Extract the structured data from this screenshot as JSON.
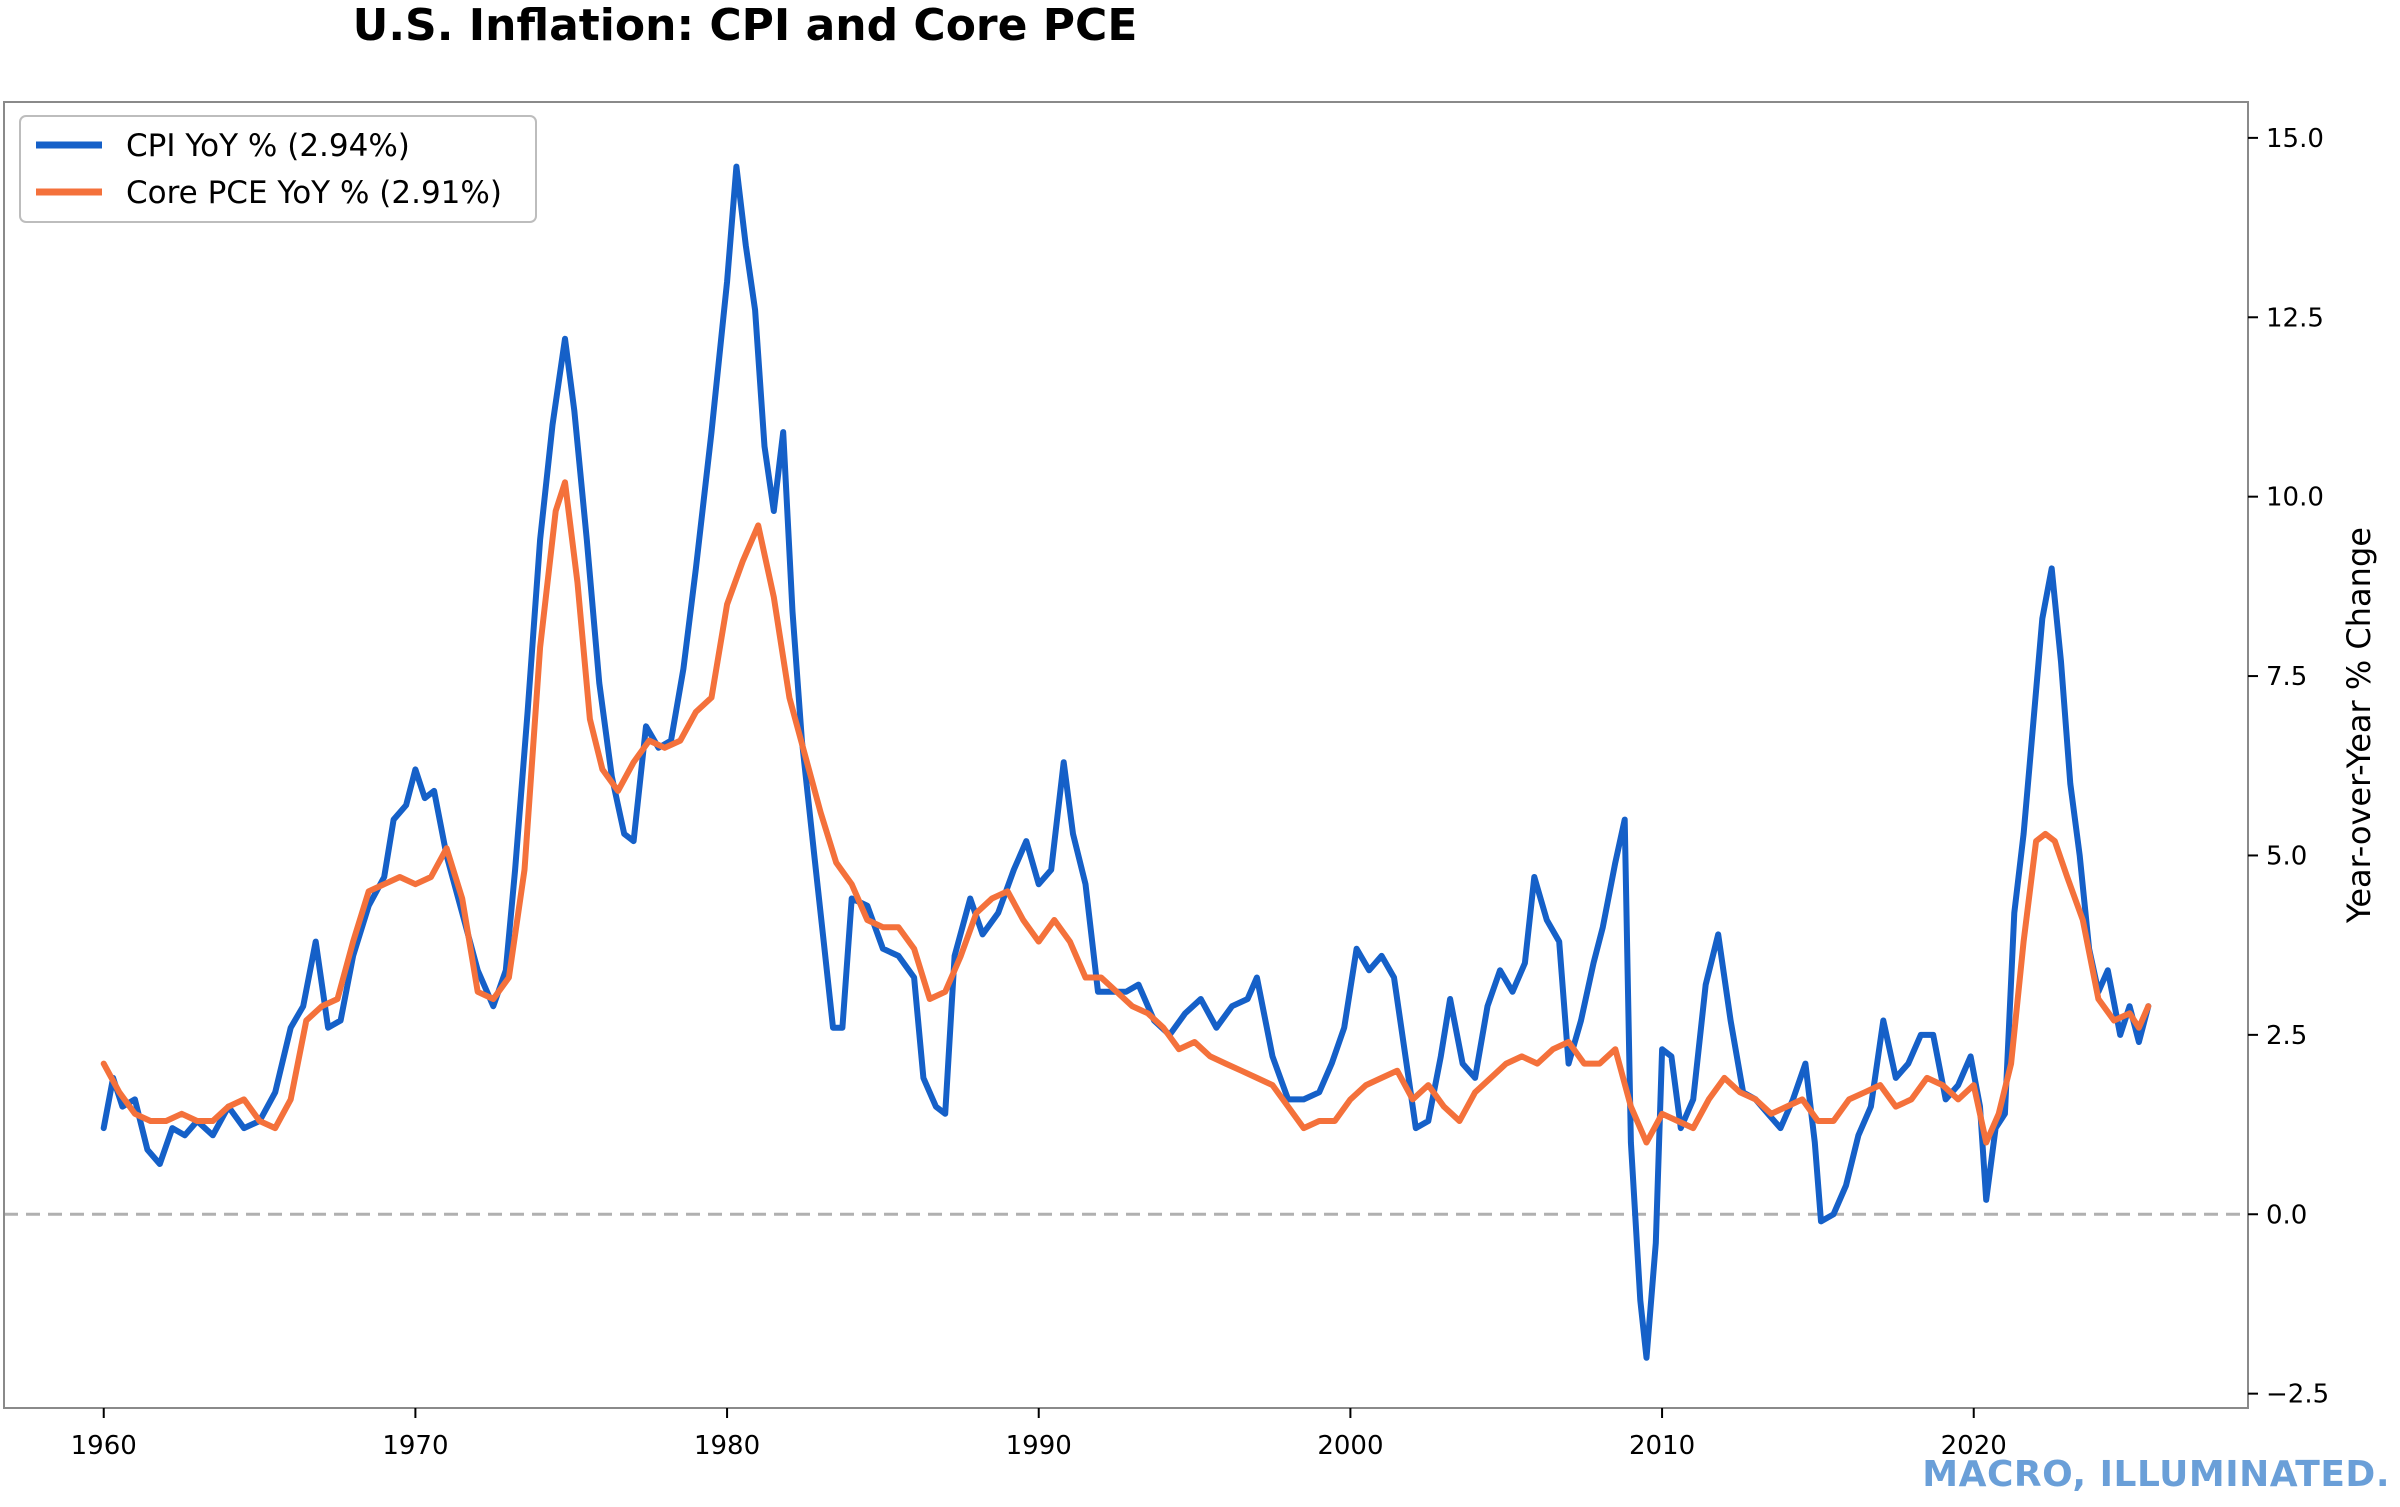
{
  "chart_data": {
    "type": "line",
    "title": "U.S. Inflation: CPI and Core PCE",
    "xlabel": "",
    "ylabel": "Year-over-Year % Change",
    "xlim": [
      1956.8,
      2028.8
    ],
    "ylim": [
      -2.7,
      15.5
    ],
    "x_ticks": [
      1960,
      1970,
      1980,
      1990,
      2000,
      2010,
      2020
    ],
    "y_ticks": [
      -2.5,
      0.0,
      2.5,
      5.0,
      7.5,
      10.0,
      12.5,
      15.0
    ],
    "y_tick_labels": [
      "−2.5",
      "0.0",
      "2.5",
      "5.0",
      "7.5",
      "10.0",
      "12.5",
      "15.0"
    ],
    "reference_line": {
      "y": 0,
      "style": "dashed",
      "color": "#b0b0b0"
    },
    "legend_position": "top-left",
    "series": [
      {
        "name": "CPI YoY % (2.94%)",
        "color": "#1560c8",
        "points": [
          [
            1960.0,
            1.2
          ],
          [
            1960.3,
            1.9
          ],
          [
            1960.6,
            1.5
          ],
          [
            1961.0,
            1.6
          ],
          [
            1961.4,
            0.9
          ],
          [
            1961.8,
            0.7
          ],
          [
            1962.2,
            1.2
          ],
          [
            1962.6,
            1.1
          ],
          [
            1963.0,
            1.3
          ],
          [
            1963.5,
            1.1
          ],
          [
            1964.0,
            1.5
          ],
          [
            1964.5,
            1.2
          ],
          [
            1965.0,
            1.3
          ],
          [
            1965.5,
            1.7
          ],
          [
            1966.0,
            2.6
          ],
          [
            1966.4,
            2.9
          ],
          [
            1966.8,
            3.8
          ],
          [
            1967.2,
            2.6
          ],
          [
            1967.6,
            2.7
          ],
          [
            1968.0,
            3.6
          ],
          [
            1968.5,
            4.3
          ],
          [
            1969.0,
            4.7
          ],
          [
            1969.3,
            5.5
          ],
          [
            1969.7,
            5.7
          ],
          [
            1970.0,
            6.2
          ],
          [
            1970.3,
            5.8
          ],
          [
            1970.6,
            5.9
          ],
          [
            1971.0,
            5.0
          ],
          [
            1971.5,
            4.2
          ],
          [
            1972.0,
            3.4
          ],
          [
            1972.5,
            2.9
          ],
          [
            1972.9,
            3.4
          ],
          [
            1973.2,
            4.8
          ],
          [
            1973.6,
            7.0
          ],
          [
            1974.0,
            9.4
          ],
          [
            1974.4,
            11.0
          ],
          [
            1974.8,
            12.2
          ],
          [
            1975.1,
            11.2
          ],
          [
            1975.5,
            9.4
          ],
          [
            1975.9,
            7.4
          ],
          [
            1976.3,
            6.1
          ],
          [
            1976.7,
            5.3
          ],
          [
            1977.0,
            5.2
          ],
          [
            1977.4,
            6.8
          ],
          [
            1977.8,
            6.5
          ],
          [
            1978.2,
            6.6
          ],
          [
            1978.6,
            7.6
          ],
          [
            1979.0,
            9.0
          ],
          [
            1979.5,
            10.9
          ],
          [
            1980.0,
            13.0
          ],
          [
            1980.3,
            14.6
          ],
          [
            1980.6,
            13.5
          ],
          [
            1980.9,
            12.6
          ],
          [
            1981.2,
            10.7
          ],
          [
            1981.5,
            9.8
          ],
          [
            1981.8,
            10.9
          ],
          [
            1982.1,
            8.4
          ],
          [
            1982.4,
            6.6
          ],
          [
            1982.8,
            5.0
          ],
          [
            1983.1,
            3.8
          ],
          [
            1983.4,
            2.6
          ],
          [
            1983.7,
            2.6
          ],
          [
            1984.0,
            4.4
          ],
          [
            1984.5,
            4.3
          ],
          [
            1985.0,
            3.7
          ],
          [
            1985.5,
            3.6
          ],
          [
            1986.0,
            3.3
          ],
          [
            1986.3,
            1.9
          ],
          [
            1986.7,
            1.5
          ],
          [
            1987.0,
            1.4
          ],
          [
            1987.3,
            3.6
          ],
          [
            1987.8,
            4.4
          ],
          [
            1988.2,
            3.9
          ],
          [
            1988.7,
            4.2
          ],
          [
            1989.2,
            4.8
          ],
          [
            1989.6,
            5.2
          ],
          [
            1990.0,
            4.6
          ],
          [
            1990.4,
            4.8
          ],
          [
            1990.8,
            6.3
          ],
          [
            1991.1,
            5.3
          ],
          [
            1991.5,
            4.6
          ],
          [
            1991.9,
            3.1
          ],
          [
            1992.3,
            3.1
          ],
          [
            1992.8,
            3.1
          ],
          [
            1993.2,
            3.2
          ],
          [
            1993.7,
            2.7
          ],
          [
            1994.2,
            2.5
          ],
          [
            1994.7,
            2.8
          ],
          [
            1995.2,
            3.0
          ],
          [
            1995.7,
            2.6
          ],
          [
            1996.2,
            2.9
          ],
          [
            1996.7,
            3.0
          ],
          [
            1997.0,
            3.3
          ],
          [
            1997.5,
            2.2
          ],
          [
            1998.0,
            1.6
          ],
          [
            1998.5,
            1.6
          ],
          [
            1999.0,
            1.7
          ],
          [
            1999.4,
            2.1
          ],
          [
            1999.8,
            2.6
          ],
          [
            2000.2,
            3.7
          ],
          [
            2000.6,
            3.4
          ],
          [
            2001.0,
            3.6
          ],
          [
            2001.4,
            3.3
          ],
          [
            2001.8,
            2.1
          ],
          [
            2002.1,
            1.2
          ],
          [
            2002.5,
            1.3
          ],
          [
            2002.9,
            2.2
          ],
          [
            2003.2,
            3.0
          ],
          [
            2003.6,
            2.1
          ],
          [
            2004.0,
            1.9
          ],
          [
            2004.4,
            2.9
          ],
          [
            2004.8,
            3.4
          ],
          [
            2005.2,
            3.1
          ],
          [
            2005.6,
            3.5
          ],
          [
            2005.9,
            4.7
          ],
          [
            2006.3,
            4.1
          ],
          [
            2006.7,
            3.8
          ],
          [
            2007.0,
            2.1
          ],
          [
            2007.4,
            2.7
          ],
          [
            2007.8,
            3.5
          ],
          [
            2008.1,
            4.0
          ],
          [
            2008.5,
            4.9
          ],
          [
            2008.8,
            5.5
          ],
          [
            2009.0,
            1.0
          ],
          [
            2009.3,
            -1.2
          ],
          [
            2009.5,
            -2.0
          ],
          [
            2009.8,
            -0.4
          ],
          [
            2010.0,
            2.3
          ],
          [
            2010.3,
            2.2
          ],
          [
            2010.6,
            1.2
          ],
          [
            2011.0,
            1.6
          ],
          [
            2011.4,
            3.2
          ],
          [
            2011.8,
            3.9
          ],
          [
            2012.2,
            2.7
          ],
          [
            2012.6,
            1.7
          ],
          [
            2013.0,
            1.6
          ],
          [
            2013.4,
            1.4
          ],
          [
            2013.8,
            1.2
          ],
          [
            2014.2,
            1.6
          ],
          [
            2014.6,
            2.1
          ],
          [
            2014.9,
            1.0
          ],
          [
            2015.1,
            -0.1
          ],
          [
            2015.5,
            0.0
          ],
          [
            2015.9,
            0.4
          ],
          [
            2016.3,
            1.1
          ],
          [
            2016.7,
            1.5
          ],
          [
            2017.1,
            2.7
          ],
          [
            2017.5,
            1.9
          ],
          [
            2017.9,
            2.1
          ],
          [
            2018.3,
            2.5
          ],
          [
            2018.7,
            2.5
          ],
          [
            2019.1,
            1.6
          ],
          [
            2019.5,
            1.8
          ],
          [
            2019.9,
            2.2
          ],
          [
            2020.2,
            1.5
          ],
          [
            2020.4,
            0.2
          ],
          [
            2020.7,
            1.2
          ],
          [
            2021.0,
            1.4
          ],
          [
            2021.3,
            4.2
          ],
          [
            2021.6,
            5.3
          ],
          [
            2021.9,
            6.8
          ],
          [
            2022.2,
            8.3
          ],
          [
            2022.5,
            9.0
          ],
          [
            2022.8,
            7.7
          ],
          [
            2023.1,
            6.0
          ],
          [
            2023.4,
            5.0
          ],
          [
            2023.7,
            3.7
          ],
          [
            2024.0,
            3.1
          ],
          [
            2024.3,
            3.4
          ],
          [
            2024.7,
            2.5
          ],
          [
            2025.0,
            2.9
          ],
          [
            2025.3,
            2.4
          ],
          [
            2025.6,
            2.9
          ]
        ]
      },
      {
        "name": "Core PCE YoY % (2.91%)",
        "color": "#f4713b",
        "points": [
          [
            1960.0,
            2.1
          ],
          [
            1960.5,
            1.7
          ],
          [
            1961.0,
            1.4
          ],
          [
            1961.5,
            1.3
          ],
          [
            1962.0,
            1.3
          ],
          [
            1962.5,
            1.4
          ],
          [
            1963.0,
            1.3
          ],
          [
            1963.5,
            1.3
          ],
          [
            1964.0,
            1.5
          ],
          [
            1964.5,
            1.6
          ],
          [
            1965.0,
            1.3
          ],
          [
            1965.5,
            1.2
          ],
          [
            1966.0,
            1.6
          ],
          [
            1966.5,
            2.7
          ],
          [
            1967.0,
            2.9
          ],
          [
            1967.5,
            3.0
          ],
          [
            1968.0,
            3.8
          ],
          [
            1968.5,
            4.5
          ],
          [
            1969.0,
            4.6
          ],
          [
            1969.5,
            4.7
          ],
          [
            1970.0,
            4.6
          ],
          [
            1970.5,
            4.7
          ],
          [
            1971.0,
            5.1
          ],
          [
            1971.5,
            4.4
          ],
          [
            1972.0,
            3.1
          ],
          [
            1972.5,
            3.0
          ],
          [
            1973.0,
            3.3
          ],
          [
            1973.5,
            4.8
          ],
          [
            1974.0,
            7.9
          ],
          [
            1974.5,
            9.8
          ],
          [
            1974.8,
            10.2
          ],
          [
            1975.2,
            8.8
          ],
          [
            1975.6,
            6.9
          ],
          [
            1976.0,
            6.2
          ],
          [
            1976.5,
            5.9
          ],
          [
            1977.0,
            6.3
          ],
          [
            1977.5,
            6.6
          ],
          [
            1978.0,
            6.5
          ],
          [
            1978.5,
            6.6
          ],
          [
            1979.0,
            7.0
          ],
          [
            1979.5,
            7.2
          ],
          [
            1980.0,
            8.5
          ],
          [
            1980.5,
            9.1
          ],
          [
            1981.0,
            9.6
          ],
          [
            1981.5,
            8.6
          ],
          [
            1982.0,
            7.2
          ],
          [
            1982.5,
            6.4
          ],
          [
            1983.0,
            5.6
          ],
          [
            1983.5,
            4.9
          ],
          [
            1984.0,
            4.6
          ],
          [
            1984.5,
            4.1
          ],
          [
            1985.0,
            4.0
          ],
          [
            1985.5,
            4.0
          ],
          [
            1986.0,
            3.7
          ],
          [
            1986.5,
            3.0
          ],
          [
            1987.0,
            3.1
          ],
          [
            1987.5,
            3.6
          ],
          [
            1988.0,
            4.2
          ],
          [
            1988.5,
            4.4
          ],
          [
            1989.0,
            4.5
          ],
          [
            1989.5,
            4.1
          ],
          [
            1990.0,
            3.8
          ],
          [
            1990.5,
            4.1
          ],
          [
            1991.0,
            3.8
          ],
          [
            1991.5,
            3.3
          ],
          [
            1992.0,
            3.3
          ],
          [
            1992.5,
            3.1
          ],
          [
            1993.0,
            2.9
          ],
          [
            1993.5,
            2.8
          ],
          [
            1994.0,
            2.6
          ],
          [
            1994.5,
            2.3
          ],
          [
            1995.0,
            2.4
          ],
          [
            1995.5,
            2.2
          ],
          [
            1996.0,
            2.1
          ],
          [
            1996.5,
            2.0
          ],
          [
            1997.0,
            1.9
          ],
          [
            1997.5,
            1.8
          ],
          [
            1998.0,
            1.5
          ],
          [
            1998.5,
            1.2
          ],
          [
            1999.0,
            1.3
          ],
          [
            1999.5,
            1.3
          ],
          [
            2000.0,
            1.6
          ],
          [
            2000.5,
            1.8
          ],
          [
            2001.0,
            1.9
          ],
          [
            2001.5,
            2.0
          ],
          [
            2002.0,
            1.6
          ],
          [
            2002.5,
            1.8
          ],
          [
            2003.0,
            1.5
          ],
          [
            2003.5,
            1.3
          ],
          [
            2004.0,
            1.7
          ],
          [
            2004.5,
            1.9
          ],
          [
            2005.0,
            2.1
          ],
          [
            2005.5,
            2.2
          ],
          [
            2006.0,
            2.1
          ],
          [
            2006.5,
            2.3
          ],
          [
            2007.0,
            2.4
          ],
          [
            2007.5,
            2.1
          ],
          [
            2008.0,
            2.1
          ],
          [
            2008.5,
            2.3
          ],
          [
            2009.0,
            1.5
          ],
          [
            2009.5,
            1.0
          ],
          [
            2010.0,
            1.4
          ],
          [
            2010.5,
            1.3
          ],
          [
            2011.0,
            1.2
          ],
          [
            2011.5,
            1.6
          ],
          [
            2012.0,
            1.9
          ],
          [
            2012.5,
            1.7
          ],
          [
            2013.0,
            1.6
          ],
          [
            2013.5,
            1.4
          ],
          [
            2014.0,
            1.5
          ],
          [
            2014.5,
            1.6
          ],
          [
            2015.0,
            1.3
          ],
          [
            2015.5,
            1.3
          ],
          [
            2016.0,
            1.6
          ],
          [
            2016.5,
            1.7
          ],
          [
            2017.0,
            1.8
          ],
          [
            2017.5,
            1.5
          ],
          [
            2018.0,
            1.6
          ],
          [
            2018.5,
            1.9
          ],
          [
            2019.0,
            1.8
          ],
          [
            2019.5,
            1.6
          ],
          [
            2020.0,
            1.8
          ],
          [
            2020.4,
            1.0
          ],
          [
            2020.8,
            1.4
          ],
          [
            2021.2,
            2.1
          ],
          [
            2021.6,
            3.8
          ],
          [
            2022.0,
            5.2
          ],
          [
            2022.3,
            5.3
          ],
          [
            2022.6,
            5.2
          ],
          [
            2023.0,
            4.7
          ],
          [
            2023.5,
            4.1
          ],
          [
            2024.0,
            3.0
          ],
          [
            2024.5,
            2.7
          ],
          [
            2025.0,
            2.8
          ],
          [
            2025.3,
            2.6
          ],
          [
            2025.6,
            2.9
          ]
        ]
      }
    ]
  },
  "watermark": "MACRO, ILLUMINATED."
}
